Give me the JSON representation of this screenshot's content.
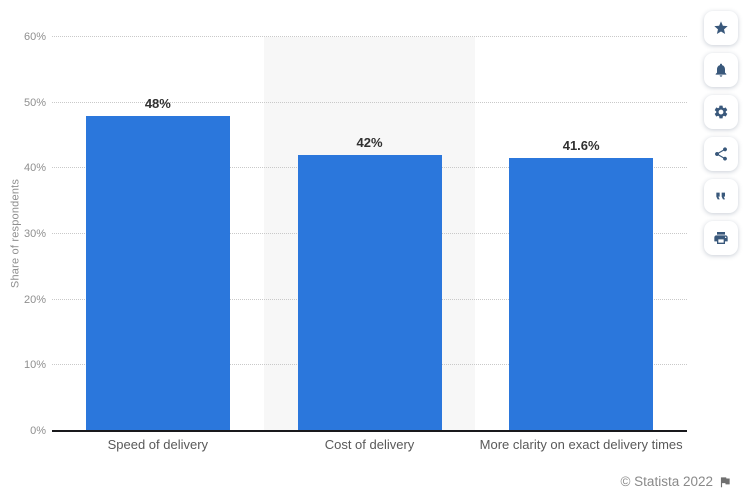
{
  "chart_data": {
    "type": "bar",
    "title": "",
    "categories": [
      "Speed of delivery",
      "Cost of delivery",
      "More clarity on exact delivery times"
    ],
    "values": [
      48,
      42,
      41.6
    ],
    "value_labels": [
      "48%",
      "42%",
      "41.6%"
    ],
    "xlabel": "",
    "ylabel": "Share of respondents",
    "ylim": [
      0,
      60
    ],
    "yticks": [
      0,
      10,
      20,
      30,
      40,
      50,
      60
    ],
    "ytick_labels": [
      "0%",
      "10%",
      "20%",
      "30%",
      "40%",
      "50%",
      "60%"
    ],
    "grid": "horizontal-dotted",
    "legend": "none",
    "bar_color": "#2b77dc",
    "band_color": "#f7f7f7",
    "banded_category_index": 1,
    "axis_line_color": "#19191c"
  },
  "footer": {
    "copyright": "© Statista 2022",
    "flag_icon": "flag-icon"
  },
  "toolbar": {
    "icon_color": "#39587b",
    "buttons": [
      {
        "icon": "star-icon",
        "label": "favorite"
      },
      {
        "icon": "bell-icon",
        "label": "notifications"
      },
      {
        "icon": "gear-icon",
        "label": "settings"
      },
      {
        "icon": "share-icon",
        "label": "share"
      },
      {
        "icon": "quote-icon",
        "label": "cite"
      },
      {
        "icon": "printer-icon",
        "label": "print"
      }
    ]
  }
}
